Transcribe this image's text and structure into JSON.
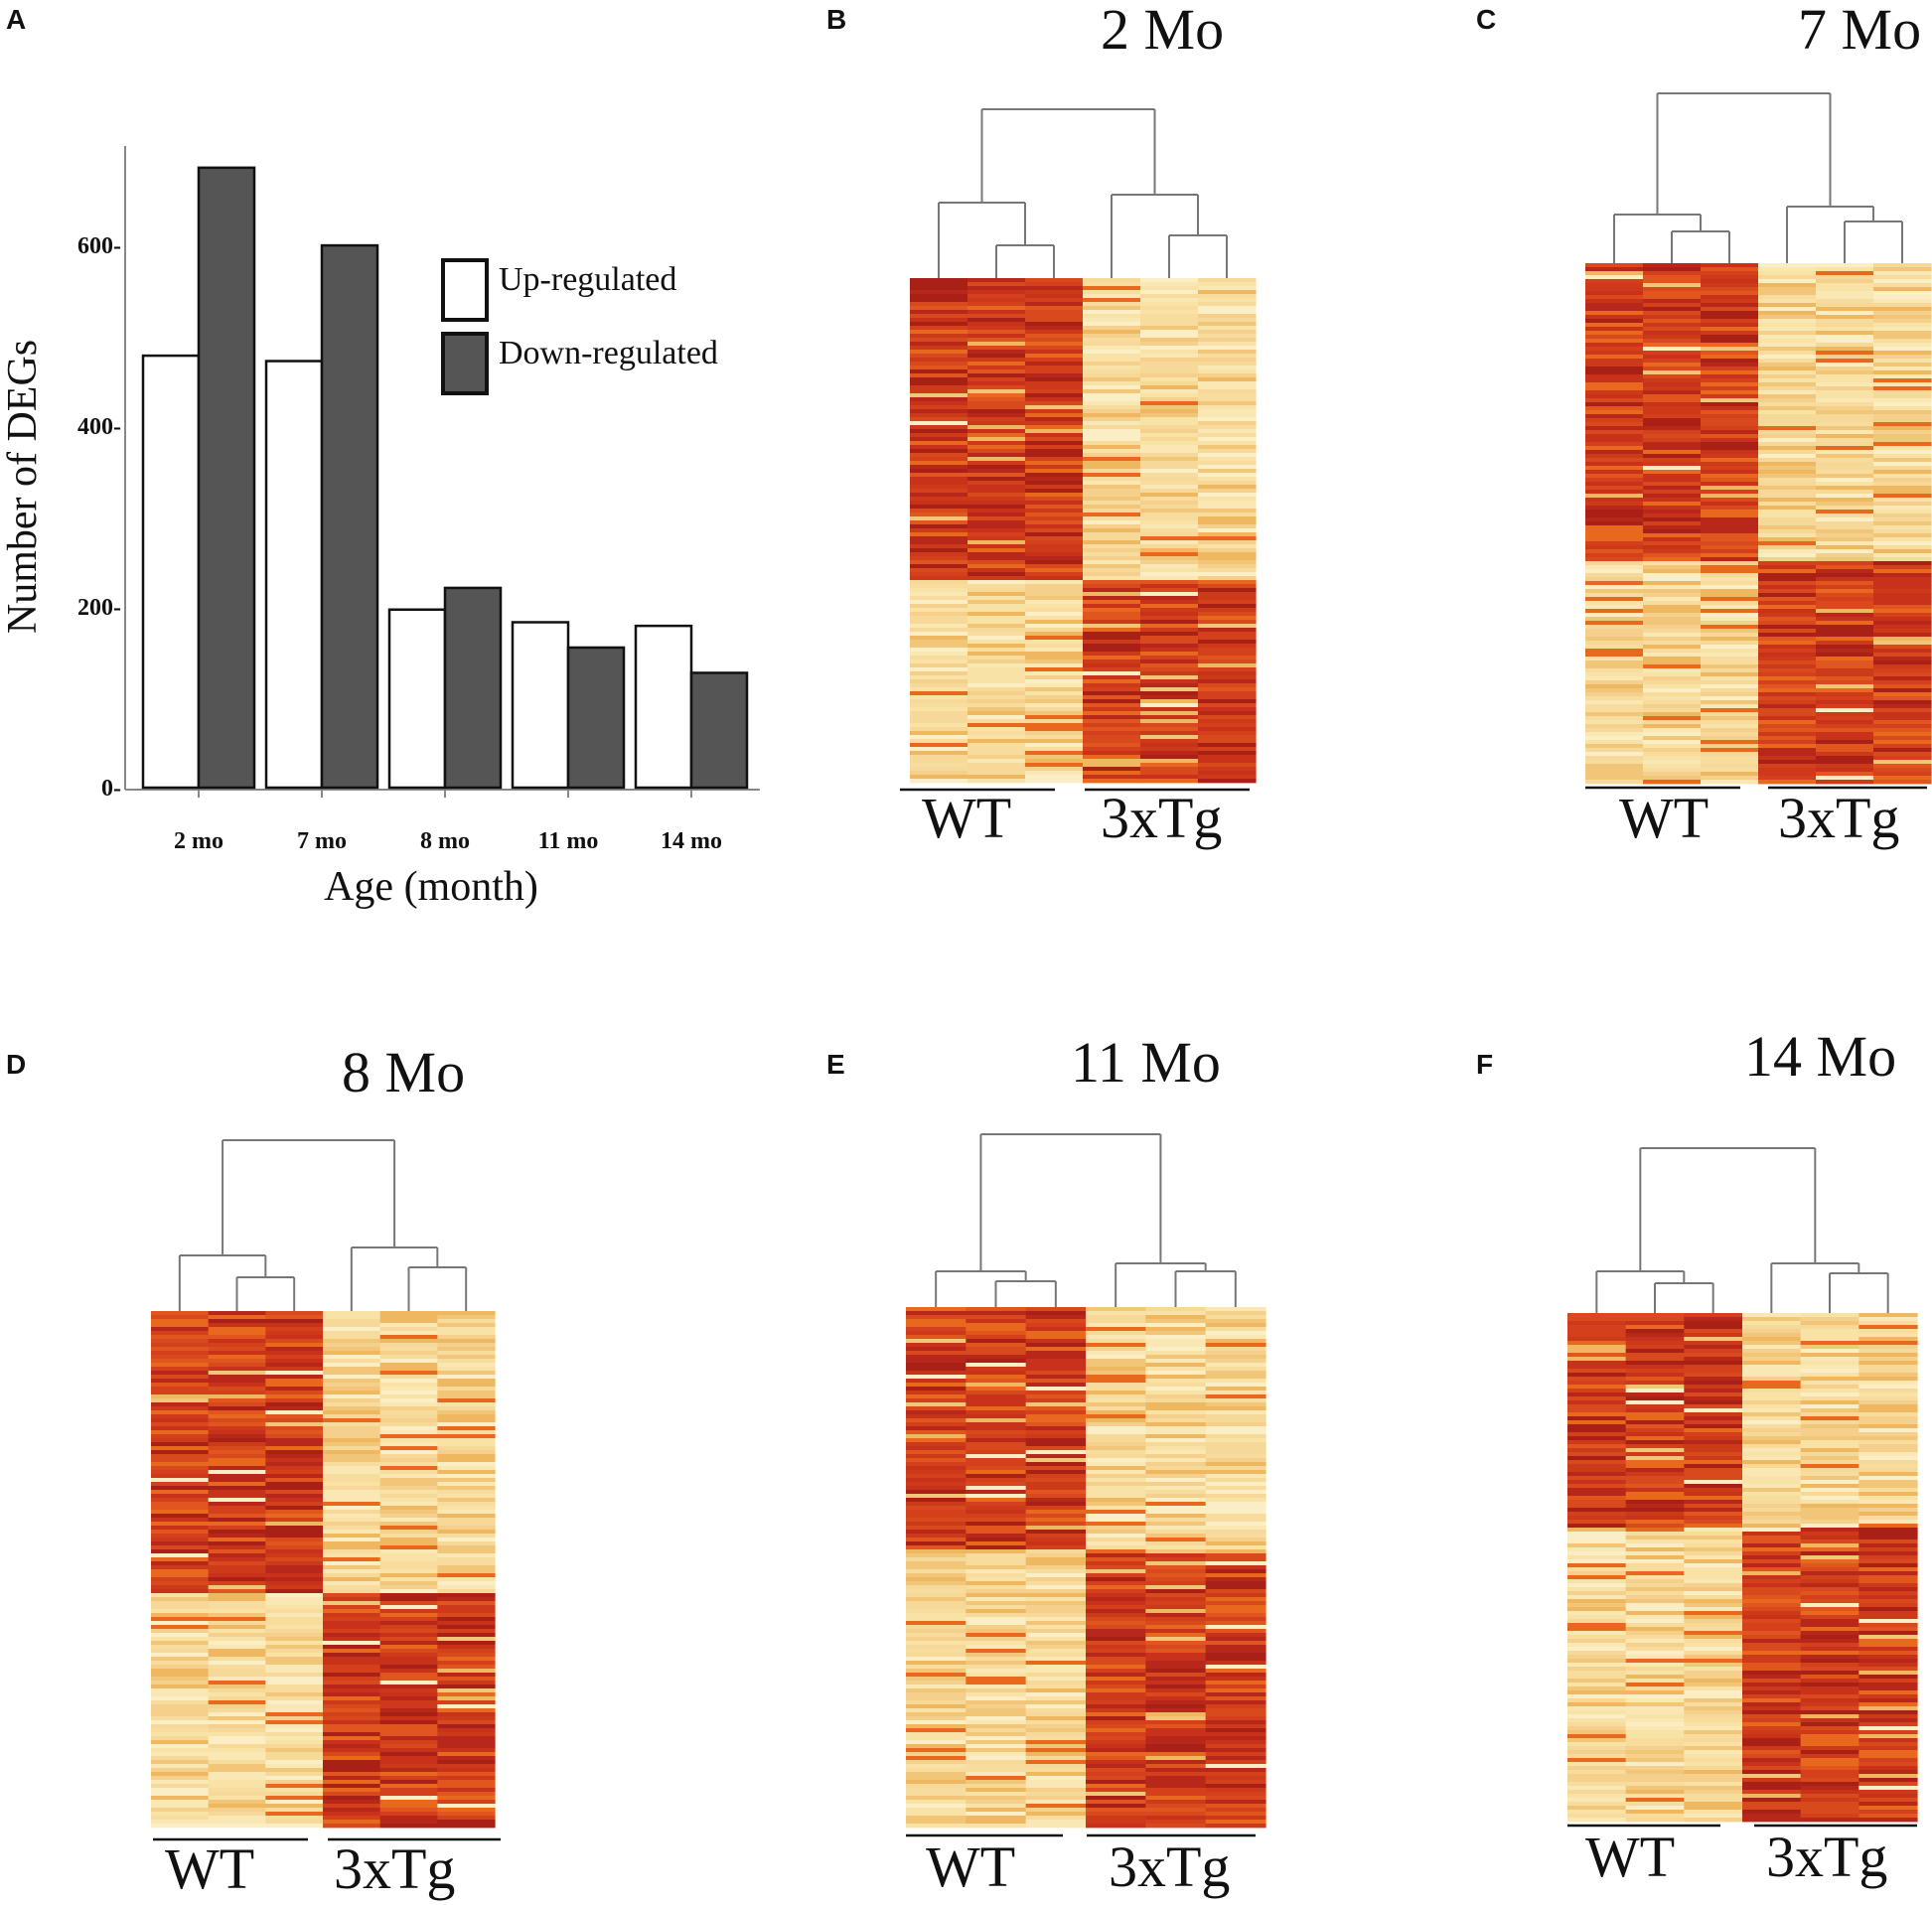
{
  "panels": {
    "A": {
      "letter": "A"
    },
    "B": {
      "letter": "B",
      "title": "2 Mo",
      "groups": [
        "WT",
        "3xTg"
      ]
    },
    "C": {
      "letter": "C",
      "title": "7 Mo",
      "groups": [
        "WT",
        "3xTg"
      ]
    },
    "D": {
      "letter": "D",
      "title": "8 Mo",
      "groups": [
        "WT",
        "3xTg"
      ]
    },
    "E": {
      "letter": "E",
      "title": "11 Mo",
      "groups": [
        "WT",
        "3xTg"
      ]
    },
    "F": {
      "letter": "F",
      "title": "14 Mo",
      "groups": [
        "WT",
        "3xTg"
      ]
    }
  },
  "chart_data": [
    {
      "type": "bar",
      "panel": "A",
      "categories": [
        "2 mo",
        "7 mo",
        "8 mo",
        "11 mo",
        "14 mo"
      ],
      "series": [
        {
          "name": "Up-regulated",
          "values": [
            478,
            472,
            197,
            183,
            179
          ],
          "color": "#ffffff"
        },
        {
          "name": "Down-regulated",
          "values": [
            686,
            600,
            221,
            155,
            127
          ],
          "color": "#555555"
        }
      ],
      "xlabel": "Age (month)",
      "ylabel": "Number of DEGs",
      "yticks": [
        0,
        200,
        400,
        600
      ],
      "ytick_labels": [
        "0-",
        "200-",
        "400-",
        "600-"
      ],
      "ylim": [
        0,
        710
      ],
      "legend": "top-right"
    },
    {
      "type": "heatmap",
      "panel": "B",
      "title": "2 Mo",
      "columns": [
        "WT",
        "WT",
        "WT",
        "3xTg",
        "3xTg",
        "3xTg"
      ],
      "blocks": {
        "WT_top": "high",
        "3xTg_top": "low",
        "WT_bottom": "low",
        "3xTg_bottom": "high"
      }
    },
    {
      "type": "heatmap",
      "panel": "C",
      "title": "7 Mo",
      "columns": [
        "WT",
        "WT",
        "WT",
        "3xTg",
        "3xTg",
        "3xTg"
      ],
      "blocks": {
        "WT_top": "high",
        "3xTg_top": "low",
        "WT_bottom": "low",
        "3xTg_bottom": "high"
      }
    },
    {
      "type": "heatmap",
      "panel": "D",
      "title": "8 Mo",
      "columns": [
        "WT",
        "WT",
        "WT",
        "3xTg",
        "3xTg",
        "3xTg"
      ],
      "blocks": {
        "WT_top": "high",
        "3xTg_top": "low",
        "WT_bottom": "low",
        "3xTg_bottom": "high"
      }
    },
    {
      "type": "heatmap",
      "panel": "E",
      "title": "11 Mo",
      "columns": [
        "WT",
        "WT",
        "WT",
        "3xTg",
        "3xTg",
        "3xTg"
      ],
      "blocks": {
        "WT_top": "high",
        "3xTg_top": "low",
        "WT_bottom": "low",
        "3xTg_bottom": "high"
      }
    },
    {
      "type": "heatmap",
      "panel": "F",
      "title": "14 Mo",
      "columns": [
        "WT",
        "WT",
        "WT",
        "3xTg",
        "3xTg",
        "3xTg"
      ],
      "blocks": {
        "WT_top": "high",
        "3xTg_top": "low",
        "WT_bottom": "low",
        "3xTg_bottom": "high"
      }
    }
  ],
  "colors": {
    "high": "#c8321a",
    "low": "#f7dc9e",
    "bar_down": "#555555",
    "axis": "#888888"
  }
}
